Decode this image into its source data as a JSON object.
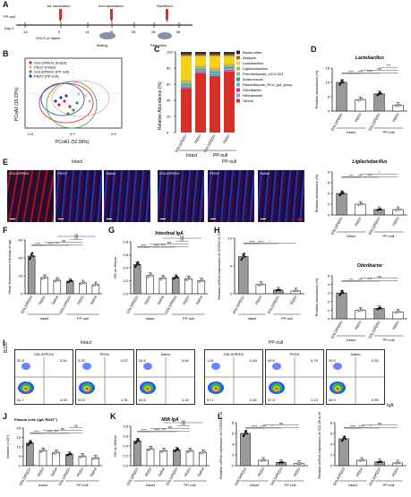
{
  "figure": {
    "panel_labels": [
      "A",
      "B",
      "C",
      "D",
      "E",
      "F",
      "G",
      "H",
      "I",
      "J",
      "K",
      "L"
    ]
  },
  "panelA": {
    "pp_null": "PP-null",
    "day0": "Day 0",
    "v1": "1st vaccination",
    "v2": "2nd vaccination",
    "sac": "Sacrificed",
    "days": [
      "-14",
      "0",
      "14",
      "28",
      "35",
      "45",
      "56"
    ],
    "gslsfoot": "GSLS or Saline",
    "mating": "Mating",
    "parturition": "Parturition"
  },
  "panelB": {
    "xlabel": "PCoA1 (52.99%)",
    "ylabel": "PCoA2 (15.23%)",
    "legend": [
      "GSLS/PEDV (Intact)",
      "PEDV (Intact)",
      "GSLS/PEDV (PP-null)",
      "PEDV (PP-null)"
    ],
    "legend_colors": [
      "#e41a1c",
      "#f4a6a6",
      "#2ca02c",
      "#1f3fbf"
    ],
    "xticks": [
      "-0.5",
      "0.0",
      "0.5"
    ]
  },
  "panelC": {
    "ylabel": "Relative Abundance (%)",
    "categories": [
      "GSLS/PEDV",
      "PEDV",
      "GSLS/PEDV",
      "PEDV"
    ],
    "groups": [
      "Intact",
      "PP-null"
    ],
    "yticks": [
      "0",
      "20",
      "40",
      "60",
      "80",
      "100"
    ],
    "legend": [
      "Bacteroides",
      "Alistipes",
      "Lactobacillus",
      "Ligilactobacillus",
      "Prevotellaceae_UCG-001",
      "Anaerovorax",
      "Rikenellaceae_RC9_gut_group",
      "Odoribacter",
      "Helicobacter",
      "Others"
    ],
    "colors": [
      "#2c2c2c",
      "#b15928",
      "#f3d31a",
      "#c9a86a",
      "#7fbf7f",
      "#1f9e89",
      "#5bb7d9",
      "#e7298a",
      "#9e9ac8",
      "#d73027"
    ]
  },
  "chart_data": [
    {
      "type": "bar",
      "title": "Lactobacillus",
      "ylabel": "Relative abundance (%)",
      "categories": [
        "GSLS/PEDV",
        "PEDV",
        "GSLS/PEDV",
        "PEDV"
      ],
      "groups": [
        "Intact",
        "PP-null"
      ],
      "values": [
        10,
        4,
        6,
        2
      ],
      "ylim": [
        0,
        15
      ],
      "yticks": [
        "0",
        "5",
        "10",
        "15"
      ],
      "sig": [
        "****",
        "****",
        "****",
        "ns",
        "***"
      ]
    },
    {
      "type": "bar",
      "title": "Ligilactobacillus",
      "ylabel": "Relative abundance (%)",
      "categories": [
        "GSLS/PEDV",
        "PEDV",
        "GSLS/PEDV",
        "PEDV"
      ],
      "groups": [
        "Intact",
        "PP-null"
      ],
      "values": [
        4,
        2,
        1,
        1
      ],
      "ylim": [
        0,
        8
      ],
      "yticks": [
        "0",
        "2",
        "4",
        "6",
        "8"
      ],
      "sig": [
        "***",
        "***",
        "***",
        "*"
      ]
    },
    {
      "type": "bar",
      "title": "Odoribacter",
      "ylabel": "Relative abundance (%)",
      "categories": [
        "GSLS/PEDV",
        "PEDV",
        "GSLS/PEDV",
        "PEDV"
      ],
      "groups": [
        "Intact",
        "PP-null"
      ],
      "values": [
        3,
        1,
        1.2,
        0.8
      ],
      "ylim": [
        0,
        5
      ],
      "yticks": [
        "0",
        "1",
        "2",
        "3",
        "4",
        "5"
      ],
      "sig": [
        "***",
        "***",
        "***",
        "ns"
      ]
    },
    {
      "type": "bar",
      "title": "",
      "ylabel": "Mean fluorescence intensity of IgA",
      "categories": [
        "GSLS/PEDV",
        "PEDV",
        "Saline",
        "GSLS/PEDV",
        "PEDV",
        "Saline"
      ],
      "groups": [
        "Intact",
        "PP-null"
      ],
      "values": [
        42,
        18,
        15,
        14,
        12,
        10
      ],
      "ylim": [
        0,
        60
      ],
      "yticks": [
        "0",
        "20",
        "40",
        "60"
      ],
      "sig": [
        "****",
        "****",
        "***",
        "ns",
        "ns",
        "ns"
      ]
    },
    {
      "type": "bar",
      "title": "Intestinal IgA",
      "ylabel": "OD at 450nm",
      "categories": [
        "GSLS/PEDV",
        "PEDV",
        "Saline",
        "GSLS/PEDV",
        "PEDV",
        "Saline"
      ],
      "groups": [
        "Intact",
        "PP-null"
      ],
      "values": [
        0.45,
        0.28,
        0.24,
        0.25,
        0.23,
        0.2
      ],
      "ylim": [
        0,
        0.8
      ],
      "yticks": [
        "0.0",
        "0.2",
        "0.4",
        "0.6",
        "0.8"
      ],
      "sig": [
        "****",
        "****",
        "***",
        "ns",
        "ns",
        "ns"
      ]
    },
    {
      "type": "bar",
      "title": "",
      "ylabel": "Relative mRNA expression of CCR10 in SI",
      "categories": [
        "GSLS/PEDV",
        "PEDV",
        "GSLS/PEDV",
        "PEDV"
      ],
      "groups": [
        "Intact",
        "PP-null"
      ],
      "values": [
        8,
        2,
        0.8,
        0.6
      ],
      "ylim": [
        0,
        12
      ],
      "yticks": [
        "0",
        "5",
        "10"
      ],
      "sig": [
        "****",
        "****",
        "*"
      ]
    },
    {
      "type": "bar",
      "title": "",
      "ylabel": "Number (×10⁴)",
      "categories": [
        "GSLS/PEDV",
        "PEDV",
        "Saline",
        "GSLS/PEDV",
        "PEDV",
        "Saline"
      ],
      "groups": [
        "Intact",
        "PP-null"
      ],
      "values": [
        12,
        8,
        7,
        6,
        5,
        4
      ],
      "ylim": [
        0,
        20
      ],
      "yticks": [
        "0",
        "5",
        "10",
        "15",
        "20"
      ],
      "sig": [
        "****",
        "****",
        "***",
        "ns",
        "ns"
      ]
    },
    {
      "type": "bar",
      "title": "Milk IgA",
      "ylabel": "OD at 450nm",
      "categories": [
        "GSLS/PEDV",
        "PEDV",
        "Saline",
        "GSLS/PEDV",
        "PEDV",
        "Saline"
      ],
      "groups": [
        "Intact",
        "PP-null"
      ],
      "values": [
        0.5,
        0.34,
        0.3,
        0.32,
        0.3,
        0.27
      ],
      "ylim": [
        0,
        0.8
      ],
      "yticks": [
        "0.0",
        "0.2",
        "0.4",
        "0.6",
        "0.8"
      ],
      "sig": [
        "****",
        "****",
        "***",
        "ns",
        "ns",
        "ns"
      ]
    },
    {
      "type": "bar",
      "title": "",
      "ylabel": "Relative mRNA expression of CCR10 in MG",
      "categories": [
        "GSLS/PEDV",
        "PEDV",
        "GSLS/PEDV",
        "PEDV"
      ],
      "groups": [
        "Intact",
        "PP-null"
      ],
      "values": [
        6,
        1,
        0.6,
        0.4
      ],
      "ylim": [
        0,
        8
      ],
      "yticks": [
        "0",
        "2",
        "4",
        "6",
        "8"
      ],
      "sig": [
        "****",
        "****",
        "*",
        "ns"
      ]
    },
    {
      "type": "bar",
      "title": "",
      "ylabel": "Relative mRNA expression of CCL28 in MG",
      "categories": [
        "GSLS/PEDV",
        "PEDV",
        "GSLS/PEDV",
        "PEDV"
      ],
      "groups": [
        "Intact",
        "PP-null"
      ],
      "values": [
        5,
        1,
        0.7,
        0.5
      ],
      "ylim": [
        0,
        8
      ],
      "yticks": [
        "0",
        "2",
        "4",
        "6",
        "8"
      ],
      "sig": [
        "****",
        "****",
        "*",
        "ns"
      ]
    }
  ],
  "panelE": {
    "intact": "Intact",
    "ppnull": "PP-null",
    "tiles": [
      "GSLS/PEDV",
      "PEDV",
      "Saline",
      "GSLS/PEDV",
      "PEDV",
      "Saline"
    ],
    "marker": "IgA"
  },
  "panelI": {
    "intact": "Intact",
    "ppnull": "PP-null",
    "tiles": [
      "GSLS/PEDV",
      "PEDV",
      "Saline",
      "GSLS/PEDV",
      "PEDV",
      "Saline"
    ],
    "quadrants": [
      [
        "32.8",
        "0.54",
        "61.7",
        "4.93"
      ],
      [
        "4.02",
        "0.57",
        "93.5",
        "1.91"
      ],
      [
        "34.5",
        "0.62",
        "63.5",
        "1.43"
      ],
      [
        "1.61",
        "0.45",
        "97.1",
        "0.82"
      ],
      [
        "40.6",
        "0.75",
        "57.5",
        "1.13"
      ],
      [
        "30.0",
        "0.52",
        "68.5",
        "0.99"
      ]
    ],
    "ylabel": "B220",
    "xlabel": "IgA"
  },
  "panelJ": {
    "title": "Plasma cells (IgA⁺B220⁻)"
  }
}
